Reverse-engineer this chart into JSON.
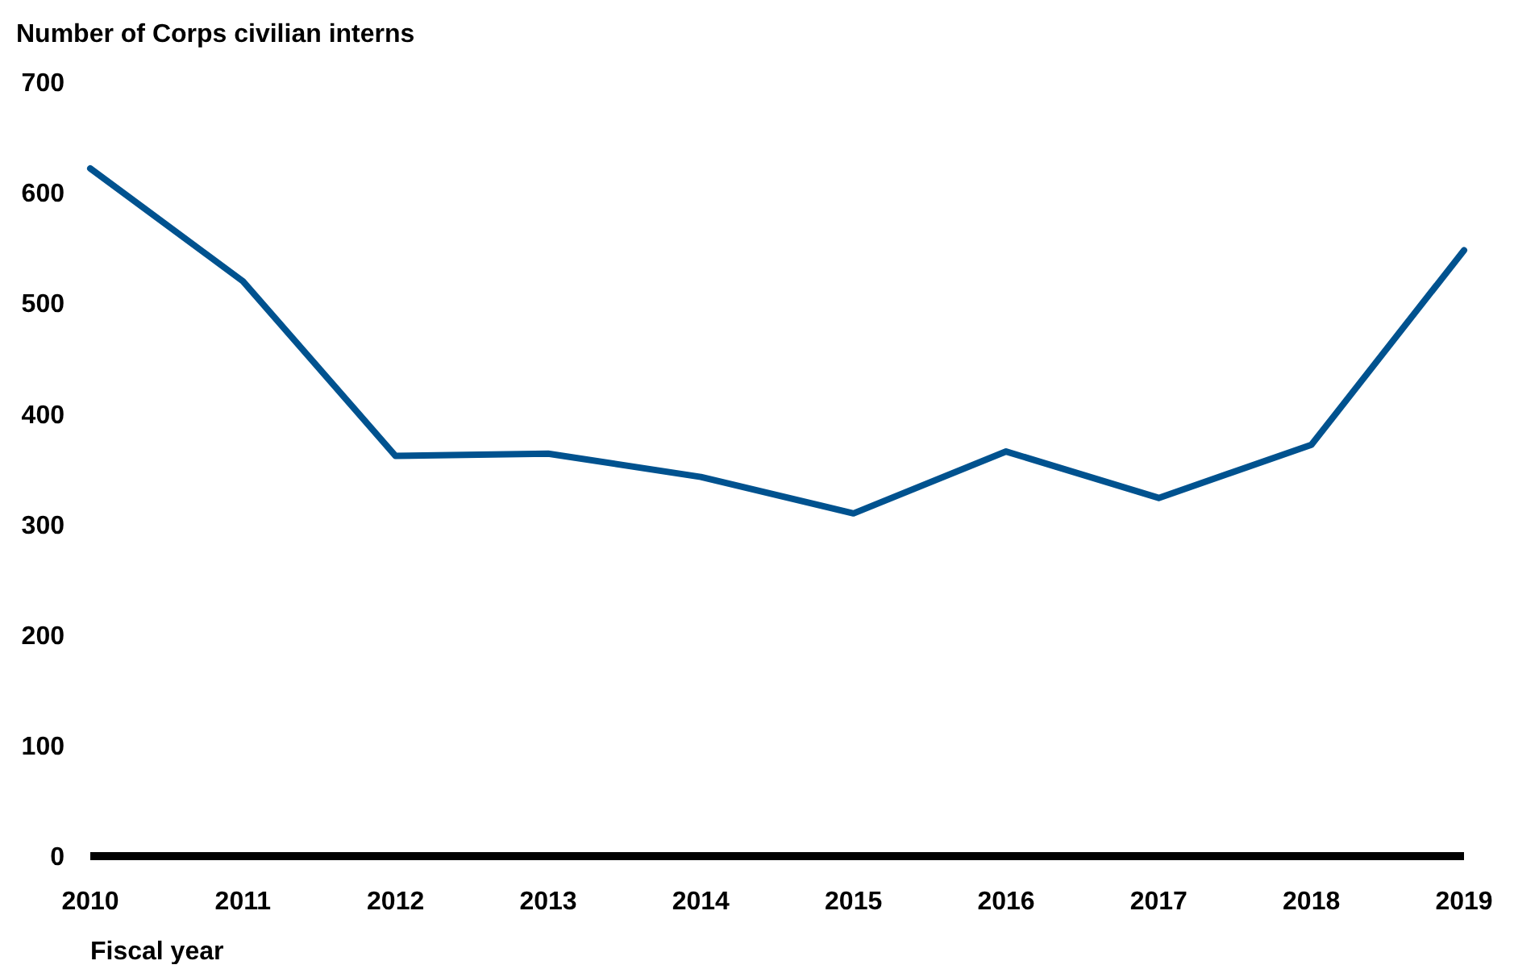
{
  "chart_data": {
    "type": "line",
    "ylabel": "Number of Corps civilian interns",
    "xlabel": "Fiscal year",
    "categories": [
      "2010",
      "2011",
      "2012",
      "2013",
      "2014",
      "2015",
      "2016",
      "2017",
      "2018",
      "2019"
    ],
    "series": [
      {
        "color": "#00528f",
        "values": [
          622,
          520,
          362,
          364,
          343,
          310,
          366,
          324,
          372,
          548
        ]
      }
    ],
    "ylim": [
      0,
      700
    ],
    "yticks": [
      0,
      100,
      200,
      300,
      400,
      500,
      600,
      700
    ],
    "grid": false,
    "marker": "none",
    "line_style": "solid"
  }
}
